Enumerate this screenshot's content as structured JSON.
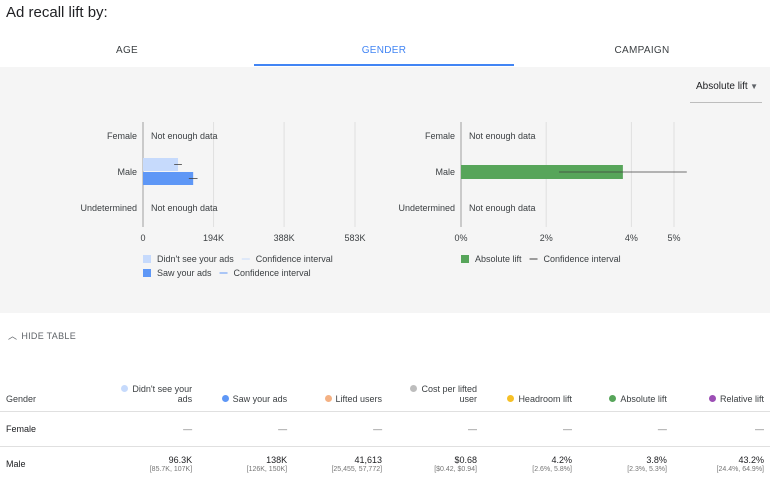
{
  "page_title": "Ad recall lift by:",
  "tabs": [
    {
      "label": "AGE",
      "active": false
    },
    {
      "label": "GENDER",
      "active": true
    },
    {
      "label": "CAMPAIGN",
      "active": false
    }
  ],
  "dropdown": {
    "selected": "Absolute lift"
  },
  "not_enough_data": "Not enough data",
  "chart_data": [
    {
      "type": "bar",
      "orientation": "horizontal",
      "categories": [
        "Female",
        "Male",
        "Undetermined"
      ],
      "series": [
        {
          "name": "Didn't see your ads",
          "color": "#c6dafc",
          "values": [
            null,
            96300,
            null
          ],
          "ci": [
            null,
            [
              85700,
              107000
            ],
            null
          ]
        },
        {
          "name": "Saw your ads",
          "color": "#5e97f6",
          "values": [
            null,
            138000,
            null
          ],
          "ci": [
            null,
            [
              126000,
              150000
            ],
            null
          ]
        }
      ],
      "xlim": [
        0,
        583000
      ],
      "x_ticks": [
        0,
        194000,
        388000,
        583000
      ],
      "x_tick_labels": [
        "0",
        "194K",
        "388K",
        "583K"
      ],
      "grid": true,
      "legend": [
        {
          "label": "Didn't see your ads",
          "ci_label": "Confidence interval"
        },
        {
          "label": "Saw your ads",
          "ci_label": "Confidence interval"
        }
      ],
      "legend_position": "bottom"
    },
    {
      "type": "bar",
      "orientation": "horizontal",
      "categories": [
        "Female",
        "Male",
        "Undetermined"
      ],
      "series": [
        {
          "name": "Absolute lift",
          "color": "#57a55a",
          "values": [
            null,
            3.8,
            null
          ],
          "ci": [
            null,
            [
              2.3,
              5.3
            ],
            null
          ]
        }
      ],
      "xlim": [
        0,
        5
      ],
      "x_ticks": [
        0,
        2,
        4,
        5
      ],
      "x_tick_labels": [
        "0%",
        "2%",
        "4%",
        "5%"
      ],
      "grid": true,
      "legend": [
        {
          "label": "Absolute lift",
          "ci_label": "Confidence interval"
        }
      ],
      "legend_position": "bottom"
    }
  ],
  "toggle": {
    "label": "HIDE TABLE"
  },
  "table": {
    "columns": [
      {
        "label": "Gender",
        "dot": null
      },
      {
        "label": "Didn't see your ads",
        "dot": "#c6dafc"
      },
      {
        "label": "Saw your ads",
        "dot": "#5e97f6"
      },
      {
        "label": "Lifted users",
        "dot": "#f4b183"
      },
      {
        "label": "Cost per lifted user",
        "dot": "#bdbdbd"
      },
      {
        "label": "Headroom lift",
        "dot": "#f6c026"
      },
      {
        "label": "Absolute lift",
        "dot": "#57a55a"
      },
      {
        "label": "Relative lift",
        "dot": "#9c4fb5"
      }
    ],
    "rows": [
      {
        "label": "Female",
        "cells": [
          {
            "value": "—",
            "ci": ""
          },
          {
            "value": "—",
            "ci": ""
          },
          {
            "value": "—",
            "ci": ""
          },
          {
            "value": "—",
            "ci": ""
          },
          {
            "value": "—",
            "ci": ""
          },
          {
            "value": "—",
            "ci": ""
          },
          {
            "value": "—",
            "ci": ""
          }
        ]
      },
      {
        "label": "Male",
        "cells": [
          {
            "value": "96.3K",
            "ci": "[85.7K, 107K]"
          },
          {
            "value": "138K",
            "ci": "[126K, 150K]"
          },
          {
            "value": "41,613",
            "ci": "[25,455, 57,772]"
          },
          {
            "value": "$0.68",
            "ci": "[$0.42, $0.94]"
          },
          {
            "value": "4.2%",
            "ci": "[2.6%, 5.8%]"
          },
          {
            "value": "3.8%",
            "ci": "[2.3%, 5.3%]"
          },
          {
            "value": "43.2%",
            "ci": "[24.4%, 64.9%]"
          }
        ]
      }
    ]
  }
}
